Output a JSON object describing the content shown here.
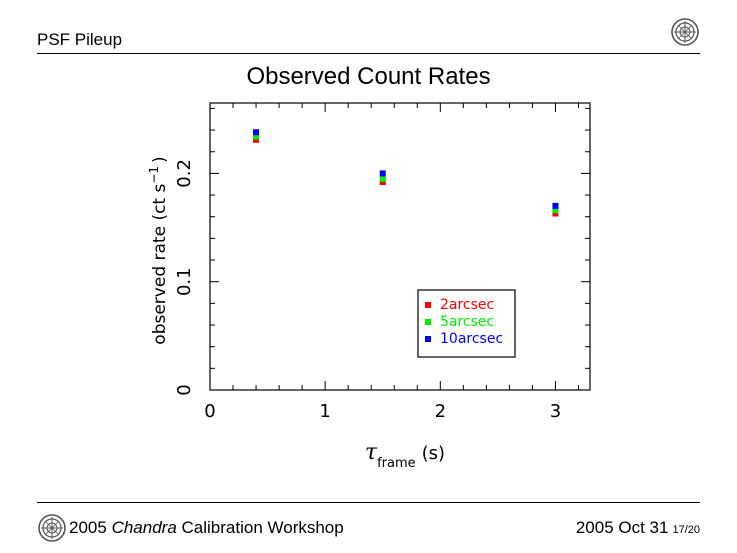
{
  "header": {
    "title": "PSF Pileup"
  },
  "slide": {
    "title": "Observed Count Rates"
  },
  "footer": {
    "left_prefix": "2005",
    "left_italic": "Chandra",
    "left_suffix": "Calibration Workshop",
    "date": "2005 Oct 31",
    "page": "17/20"
  },
  "icons": {
    "logo": "cxc-logo-icon"
  },
  "chart_data": {
    "type": "scatter",
    "title": "Observed Count Rates",
    "xlabel": {
      "symbol": "τ",
      "subscript": "frame",
      "unit": "(s)"
    },
    "ylabel": {
      "text": "observed rate (ct s",
      "superscript": "−1",
      "close": ")"
    },
    "xlim": [
      0,
      3.3
    ],
    "ylim": [
      0,
      0.265
    ],
    "xticks": [
      0,
      1,
      2,
      3
    ],
    "xtick_labels": [
      "0",
      "1",
      "2",
      "3"
    ],
    "yticks": [
      0,
      0.1,
      0.2
    ],
    "ytick_labels": [
      "0",
      "0.1",
      "0.2"
    ],
    "grid": false,
    "legend_position": "lower-right",
    "series": [
      {
        "name": "2arcsec",
        "color": "#ff0000",
        "x": [
          0.4,
          1.5,
          3.0
        ],
        "y": [
          0.231,
          0.192,
          0.163
        ]
      },
      {
        "name": "5arcsec",
        "color": "#00ee00",
        "x": [
          0.4,
          1.5,
          3.0
        ],
        "y": [
          0.234,
          0.195,
          0.166
        ]
      },
      {
        "name": "10arcsec",
        "color": "#0000ff",
        "x": [
          0.4,
          1.5,
          3.0
        ],
        "y": [
          0.238,
          0.2,
          0.17
        ]
      }
    ]
  }
}
